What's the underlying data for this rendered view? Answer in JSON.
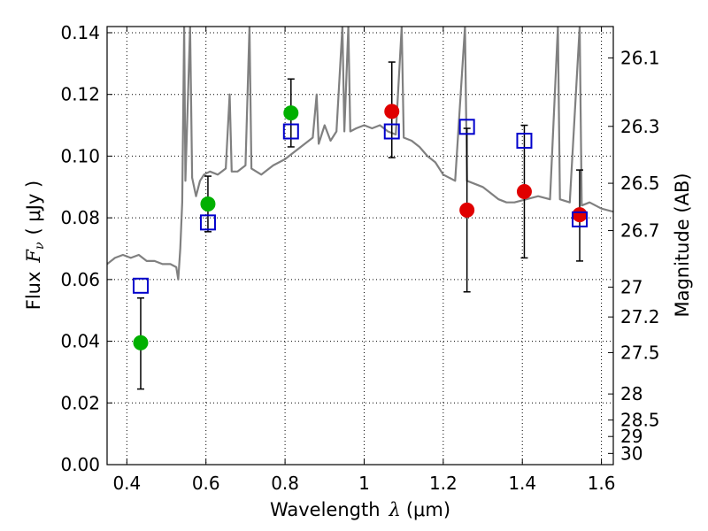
{
  "chart_data": {
    "type": "scatter",
    "xlabel_text": "Wavelength",
    "xlabel_symbol": "λ",
    "xlabel_unit": "(μm)",
    "ylabel_text": "Flux",
    "ylabel_symbol": "F",
    "ylabel_subscript": "ν",
    "ylabel_unit": "( μJy )",
    "y2label": "Magnitude (AB)",
    "xlim": [
      0.35,
      1.63
    ],
    "ylim": [
      0.0,
      0.142
    ],
    "x_ticks": [
      0.4,
      0.6,
      0.8,
      1.0,
      1.2,
      1.4,
      1.6
    ],
    "x_tick_labels": [
      "0.4",
      "0.6",
      "0.8",
      "1",
      "1.2",
      "1.4",
      "1.6"
    ],
    "y_ticks": [
      0.0,
      0.02,
      0.04,
      0.06,
      0.08,
      0.1,
      0.12,
      0.14
    ],
    "y_tick_labels": [
      "0.00",
      "0.02",
      "0.04",
      "0.06",
      "0.08",
      "0.10",
      "0.12",
      "0.14"
    ],
    "right_axis": {
      "label": "Magnitude (AB)",
      "ticks": [
        {
          "mag": 26.1,
          "label": "26.1"
        },
        {
          "mag": 26.3,
          "label": "26.3"
        },
        {
          "mag": 26.5,
          "label": "26.5"
        },
        {
          "mag": 26.7,
          "label": "26.7"
        },
        {
          "mag": 27.0,
          "label": "27"
        },
        {
          "mag": 27.2,
          "label": "27.2"
        },
        {
          "mag": 27.5,
          "label": "27.5"
        },
        {
          "mag": 28.0,
          "label": "28"
        },
        {
          "mag": 28.5,
          "label": "28.5"
        },
        {
          "mag": 29.0,
          "label": "29"
        },
        {
          "mag": 30.0,
          "label": "30"
        }
      ]
    },
    "grid": true,
    "series": [
      {
        "name": "model-spectrum",
        "kind": "line",
        "color": "#808080",
        "points": [
          [
            0.35,
            0.065
          ],
          [
            0.37,
            0.067
          ],
          [
            0.39,
            0.068
          ],
          [
            0.41,
            0.067
          ],
          [
            0.43,
            0.068
          ],
          [
            0.45,
            0.066
          ],
          [
            0.47,
            0.066
          ],
          [
            0.49,
            0.065
          ],
          [
            0.51,
            0.065
          ],
          [
            0.525,
            0.064
          ],
          [
            0.53,
            0.06
          ],
          [
            0.535,
            0.07
          ],
          [
            0.54,
            0.085
          ],
          [
            0.545,
            0.142
          ],
          [
            0.548,
            0.092
          ],
          [
            0.56,
            0.142
          ],
          [
            0.565,
            0.093
          ],
          [
            0.575,
            0.087
          ],
          [
            0.585,
            0.092
          ],
          [
            0.595,
            0.094
          ],
          [
            0.61,
            0.095
          ],
          [
            0.63,
            0.094
          ],
          [
            0.65,
            0.096
          ],
          [
            0.66,
            0.12
          ],
          [
            0.665,
            0.095
          ],
          [
            0.68,
            0.095
          ],
          [
            0.7,
            0.097
          ],
          [
            0.71,
            0.142
          ],
          [
            0.715,
            0.096
          ],
          [
            0.74,
            0.094
          ],
          [
            0.77,
            0.097
          ],
          [
            0.8,
            0.099
          ],
          [
            0.82,
            0.101
          ],
          [
            0.85,
            0.104
          ],
          [
            0.87,
            0.106
          ],
          [
            0.88,
            0.12
          ],
          [
            0.885,
            0.104
          ],
          [
            0.9,
            0.11
          ],
          [
            0.915,
            0.105
          ],
          [
            0.93,
            0.108
          ],
          [
            0.945,
            0.142
          ],
          [
            0.95,
            0.108
          ],
          [
            0.96,
            0.142
          ],
          [
            0.965,
            0.108
          ],
          [
            0.98,
            0.109
          ],
          [
            1.0,
            0.11
          ],
          [
            1.02,
            0.109
          ],
          [
            1.04,
            0.11
          ],
          [
            1.06,
            0.108
          ],
          [
            1.08,
            0.107
          ],
          [
            1.095,
            0.142
          ],
          [
            1.1,
            0.106
          ],
          [
            1.12,
            0.105
          ],
          [
            1.14,
            0.103
          ],
          [
            1.16,
            0.1
          ],
          [
            1.18,
            0.098
          ],
          [
            1.2,
            0.094
          ],
          [
            1.23,
            0.092
          ],
          [
            1.255,
            0.142
          ],
          [
            1.26,
            0.092
          ],
          [
            1.28,
            0.091
          ],
          [
            1.3,
            0.09
          ],
          [
            1.32,
            0.088
          ],
          [
            1.34,
            0.086
          ],
          [
            1.36,
            0.085
          ],
          [
            1.38,
            0.085
          ],
          [
            1.41,
            0.086
          ],
          [
            1.44,
            0.087
          ],
          [
            1.47,
            0.086
          ],
          [
            1.49,
            0.142
          ],
          [
            1.495,
            0.086
          ],
          [
            1.52,
            0.085
          ],
          [
            1.545,
            0.142
          ],
          [
            1.55,
            0.084
          ],
          [
            1.57,
            0.085
          ],
          [
            1.6,
            0.083
          ],
          [
            1.63,
            0.082
          ]
        ]
      },
      {
        "name": "green-points",
        "kind": "errorbar-circle",
        "color": "#00b000",
        "points": [
          {
            "x": 0.435,
            "y": 0.0395,
            "yerr_lo": 0.015,
            "yerr_hi": 0.0145
          },
          {
            "x": 0.605,
            "y": 0.0845,
            "yerr_lo": 0.009,
            "yerr_hi": 0.009
          },
          {
            "x": 0.815,
            "y": 0.114,
            "yerr_lo": 0.011,
            "yerr_hi": 0.011
          }
        ]
      },
      {
        "name": "red-points",
        "kind": "errorbar-circle",
        "color": "#e00000",
        "points": [
          {
            "x": 1.07,
            "y": 0.1145,
            "yerr_lo": 0.015,
            "yerr_hi": 0.016
          },
          {
            "x": 1.26,
            "y": 0.0825,
            "yerr_lo": 0.0265,
            "yerr_hi": 0.0265
          },
          {
            "x": 1.405,
            "y": 0.0885,
            "yerr_lo": 0.0215,
            "yerr_hi": 0.0215
          },
          {
            "x": 1.545,
            "y": 0.081,
            "yerr_lo": 0.015,
            "yerr_hi": 0.0145
          }
        ]
      },
      {
        "name": "blue-squares",
        "kind": "square",
        "color": "#0000cc",
        "points": [
          {
            "x": 0.435,
            "y": 0.058
          },
          {
            "x": 0.605,
            "y": 0.0785
          },
          {
            "x": 0.815,
            "y": 0.108
          },
          {
            "x": 1.07,
            "y": 0.108
          },
          {
            "x": 1.26,
            "y": 0.1095
          },
          {
            "x": 1.405,
            "y": 0.105
          },
          {
            "x": 1.545,
            "y": 0.0795
          }
        ]
      }
    ]
  }
}
